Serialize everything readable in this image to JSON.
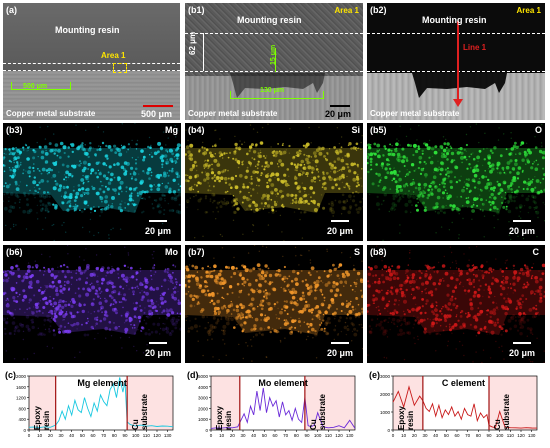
{
  "panels": {
    "a": {
      "label": "(a)",
      "resin": "Mounting resin",
      "area": "Area 1",
      "dim": "500 μm",
      "substrate": "Copper metal substrate",
      "scale": "500 μm"
    },
    "b1": {
      "label": "(b1)",
      "resin": "Mounting resin",
      "area": "Area 1",
      "dim_v": "62 μm",
      "dim_v2": "15 μm",
      "dim_h": "130 μm",
      "substrate": "Copper metal substrate",
      "scale": "20 μm"
    },
    "b2": {
      "label": "(b2)",
      "resin": "Mounting resin",
      "area": "Area 1",
      "line": "Line 1",
      "substrate": "Copper metal substrate"
    },
    "maps": [
      {
        "label": "(b3)",
        "element": "Mg",
        "scale": "20 μm",
        "color": "#19d4e0"
      },
      {
        "label": "(b4)",
        "element": "Si",
        "scale": "20 μm",
        "color": "#cfc02a"
      },
      {
        "label": "(b5)",
        "element": "O",
        "scale": "20 μm",
        "color": "#2ee03a"
      },
      {
        "label": "(b6)",
        "element": "Mo",
        "scale": "20 μm",
        "color": "#7a3cf0"
      },
      {
        "label": "(b7)",
        "element": "S",
        "scale": "20 μm",
        "color": "#f0962a"
      },
      {
        "label": "(b8)",
        "element": "C",
        "scale": "20 μm",
        "color": "#d01818"
      }
    ]
  },
  "chart_data": [
    {
      "type": "line",
      "label": "(c)",
      "title": "Mg element",
      "left_label": "Epoxy resin",
      "right_label": "Cu substrate",
      "yticks": [
        "2000",
        "1600",
        "1200",
        "800",
        "400",
        "0"
      ],
      "ylim": [
        0,
        2000
      ],
      "xticks": [
        "0",
        "10",
        "20",
        "30",
        "40",
        "50",
        "60",
        "70",
        "80",
        "90",
        "100",
        "110",
        "120",
        "130"
      ],
      "xlim": [
        0,
        135
      ],
      "boundaries": [
        25,
        92
      ],
      "series_color": "#19c8e0",
      "x": [
        0,
        5,
        10,
        15,
        20,
        25,
        28,
        31,
        34,
        37,
        40,
        43,
        46,
        49,
        52,
        55,
        58,
        61,
        64,
        67,
        70,
        73,
        76,
        79,
        82,
        85,
        88,
        90,
        92,
        95,
        100,
        105,
        110,
        115,
        120,
        125,
        130,
        135
      ],
      "y": [
        100,
        110,
        90,
        120,
        100,
        180,
        350,
        700,
        400,
        900,
        550,
        1100,
        750,
        650,
        1200,
        800,
        500,
        1000,
        700,
        1300,
        1050,
        900,
        1500,
        1700,
        1200,
        1950,
        1400,
        1800,
        300,
        200,
        150,
        180,
        140,
        160,
        130,
        150,
        140,
        120
      ]
    },
    {
      "type": "line",
      "label": "(d)",
      "title": "Mo element",
      "left_label": "Epoxy resin",
      "right_label": "Cu substrate",
      "yticks": [
        "5000",
        "4000",
        "3000",
        "2000",
        "1000",
        "0"
      ],
      "ylim": [
        0,
        5000
      ],
      "xticks": [
        "0",
        "10",
        "20",
        "30",
        "40",
        "50",
        "60",
        "70",
        "80",
        "90",
        "100",
        "110",
        "120",
        "130"
      ],
      "xlim": [
        0,
        135
      ],
      "boundaries": [
        27,
        88
      ],
      "series_color": "#6a2ad8",
      "x": [
        0,
        5,
        10,
        15,
        20,
        25,
        28,
        31,
        34,
        37,
        40,
        43,
        46,
        49,
        52,
        55,
        58,
        61,
        64,
        67,
        70,
        73,
        76,
        79,
        82,
        85,
        88,
        91,
        94,
        97,
        100,
        105,
        110,
        115,
        120,
        125,
        130,
        135
      ],
      "y": [
        150,
        200,
        180,
        220,
        200,
        300,
        900,
        1500,
        700,
        2200,
        1400,
        3600,
        1800,
        3900,
        1600,
        3000,
        2200,
        2700,
        1200,
        2600,
        1400,
        1800,
        900,
        2000,
        1000,
        700,
        3000,
        400,
        300,
        500,
        1600,
        300,
        200,
        250,
        400,
        200,
        900,
        150
      ]
    },
    {
      "type": "line",
      "label": "(e)",
      "title": "C element",
      "left_label": "Epoxy resin",
      "right_label": "Cu substrate",
      "yticks": [
        "3000",
        "2000",
        "1000",
        "0"
      ],
      "ylim": [
        0,
        3500
      ],
      "xticks": [
        "0",
        "10",
        "20",
        "30",
        "40",
        "50",
        "60",
        "70",
        "80",
        "90",
        "100",
        "110",
        "120",
        "130"
      ],
      "xlim": [
        0,
        135
      ],
      "boundaries": [
        28,
        90
      ],
      "series_color": "#c81818",
      "x": [
        0,
        5,
        10,
        15,
        20,
        25,
        28,
        31,
        34,
        37,
        40,
        43,
        46,
        49,
        52,
        55,
        58,
        61,
        64,
        67,
        70,
        73,
        76,
        79,
        82,
        85,
        88,
        90,
        93,
        96,
        100,
        105,
        110,
        115,
        120,
        125,
        130,
        135
      ],
      "y": [
        1800,
        2500,
        1500,
        2800,
        1600,
        2200,
        1900,
        1400,
        1200,
        1700,
        900,
        1600,
        800,
        1300,
        1000,
        1500,
        900,
        1200,
        700,
        1400,
        1000,
        900,
        1700,
        600,
        1100,
        800,
        1000,
        300,
        200,
        150,
        1200,
        180,
        150,
        140,
        120,
        150,
        130,
        120
      ]
    }
  ]
}
